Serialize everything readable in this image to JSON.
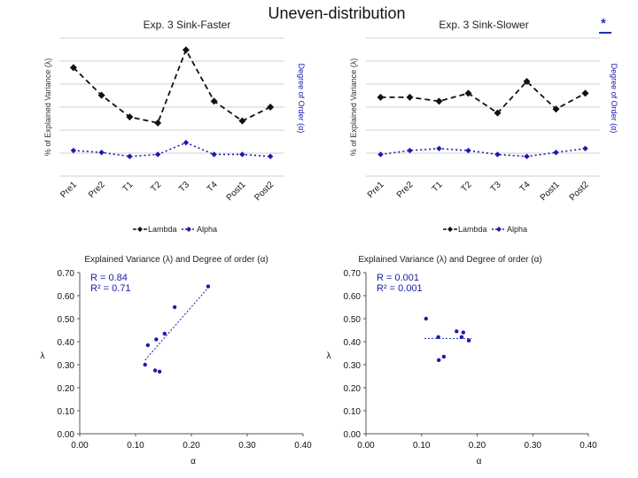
{
  "slide": {
    "title": "Uneven-distribution",
    "corner_mark": "*"
  },
  "colors": {
    "lambda": "#111111",
    "alpha": "#1a1ab0",
    "grid": "#d0d0d0",
    "text": "#222222"
  },
  "chart_data": [
    {
      "type": "line",
      "title": "Exp. 3 Sink-Faster",
      "ylabel": "% of Explained Variance (λ)",
      "y2label": "Degree of Order (α)",
      "categories": [
        "Pre1",
        "Pre2",
        "T1",
        "T2",
        "T3",
        "T4",
        "Post1",
        "Post2"
      ],
      "series": [
        {
          "name": "Lambda",
          "values": [
            0.55,
            0.41,
            0.3,
            0.27,
            0.64,
            0.38,
            0.28,
            0.35
          ]
        },
        {
          "name": "Alpha",
          "values": [
            0.13,
            0.12,
            0.1,
            0.11,
            0.17,
            0.11,
            0.11,
            0.1
          ]
        }
      ],
      "legend": "bottom",
      "grid": true
    },
    {
      "type": "line",
      "title": "Exp. 3 Sink-Slower",
      "ylabel": "% of Explained Variance (λ)",
      "y2label": "Degree of Order (α)",
      "categories": [
        "Pre1",
        "Pre2",
        "T1",
        "T2",
        "T3",
        "T4",
        "Post1",
        "Post2"
      ],
      "series": [
        {
          "name": "Lambda",
          "values": [
            0.4,
            0.4,
            0.38,
            0.42,
            0.32,
            0.48,
            0.34,
            0.42
          ]
        },
        {
          "name": "Alpha",
          "values": [
            0.11,
            0.13,
            0.14,
            0.13,
            0.11,
            0.1,
            0.12,
            0.14
          ]
        }
      ],
      "legend": "bottom",
      "grid": true
    },
    {
      "type": "scatter",
      "title": "Explained Variance (λ) and Degree of order (α)",
      "xlabel": "α",
      "ylabel": "λ",
      "xlim": [
        0,
        0.4
      ],
      "ylim": [
        0,
        0.7
      ],
      "xticks": [
        "0.00",
        "0.10",
        "0.20",
        "0.30",
        "0.40"
      ],
      "yticks": [
        "0.00",
        "0.10",
        "0.20",
        "0.30",
        "0.40",
        "0.50",
        "0.60",
        "0.70"
      ],
      "annotations": [
        "R = 0.84",
        "R² = 0.71"
      ],
      "points": [
        [
          0.117,
          0.3
        ],
        [
          0.122,
          0.385
        ],
        [
          0.135,
          0.275
        ],
        [
          0.137,
          0.41
        ],
        [
          0.143,
          0.27
        ],
        [
          0.152,
          0.435
        ],
        [
          0.17,
          0.55
        ],
        [
          0.23,
          0.64
        ]
      ],
      "trendline": [
        [
          0.117,
          0.32
        ],
        [
          0.232,
          0.64
        ]
      ],
      "grid": false
    },
    {
      "type": "scatter",
      "title": "Explained Variance (λ) and Degree of order (α)",
      "xlabel": "α",
      "ylabel": "λ",
      "xlim": [
        0,
        0.4
      ],
      "ylim": [
        0,
        0.7
      ],
      "xticks": [
        "0.00",
        "0.10",
        "0.20",
        "0.30",
        "0.40"
      ],
      "yticks": [
        "0.00",
        "0.10",
        "0.20",
        "0.30",
        "0.40",
        "0.50",
        "0.60",
        "0.70"
      ],
      "annotations": [
        "R = 0.001",
        "R² = 0.001"
      ],
      "points": [
        [
          0.108,
          0.5
        ],
        [
          0.13,
          0.42
        ],
        [
          0.131,
          0.32
        ],
        [
          0.14,
          0.335
        ],
        [
          0.163,
          0.445
        ],
        [
          0.172,
          0.42
        ],
        [
          0.175,
          0.44
        ],
        [
          0.185,
          0.405
        ]
      ],
      "trendline": [
        [
          0.105,
          0.414
        ],
        [
          0.19,
          0.414
        ]
      ],
      "grid": false
    }
  ]
}
